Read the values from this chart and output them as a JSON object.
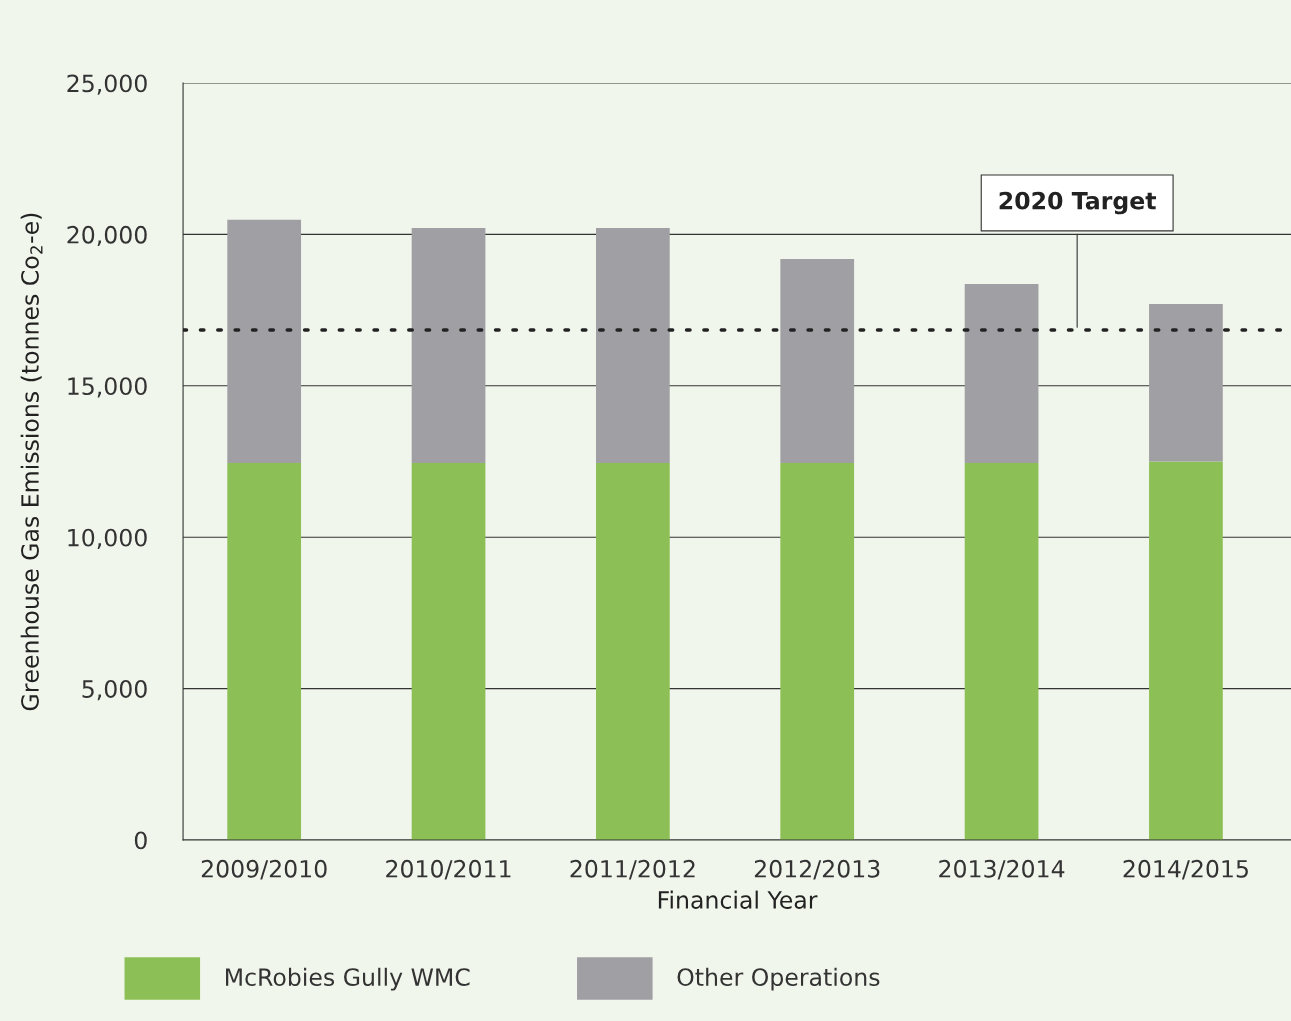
{
  "chart_data": {
    "type": "bar",
    "stacked": true,
    "xlabel": "Financial Year",
    "ylabel": "Greenhouse Gas Emissions (tonnes Co$_{2}$-e)",
    "categories": [
      "2009/2010",
      "2010/2011",
      "2011/2012",
      "2012/2013",
      "2013/2014",
      "2014/2015"
    ],
    "series": [
      {
        "name": "McRobies Gully WMC",
        "color": "#8cc056",
        "values": [
          12450,
          12450,
          12450,
          12450,
          12450,
          12500
        ]
      },
      {
        "name": "Other Operations",
        "color": "#a09fa4",
        "values": [
          8030,
          7760,
          7760,
          6740,
          5910,
          5200
        ]
      }
    ],
    "ylim": [
      0,
      25000
    ],
    "yticks": [
      0,
      {
        "value": 5000,
        "label": "5,000"
      },
      {
        "value": 10000,
        "label": "10,000"
      },
      {
        "value": 15000,
        "label": "15,000"
      },
      {
        "value": 20000,
        "label": "20,000"
      },
      {
        "value": 25000,
        "label": "25,000"
      }
    ],
    "grid": "y",
    "legend": "bottom",
    "ref_lines": [
      {
        "axis": "y",
        "value": 16840,
        "label": "2020 Target",
        "color": "#222222",
        "line_style": "dotted"
      }
    ]
  }
}
